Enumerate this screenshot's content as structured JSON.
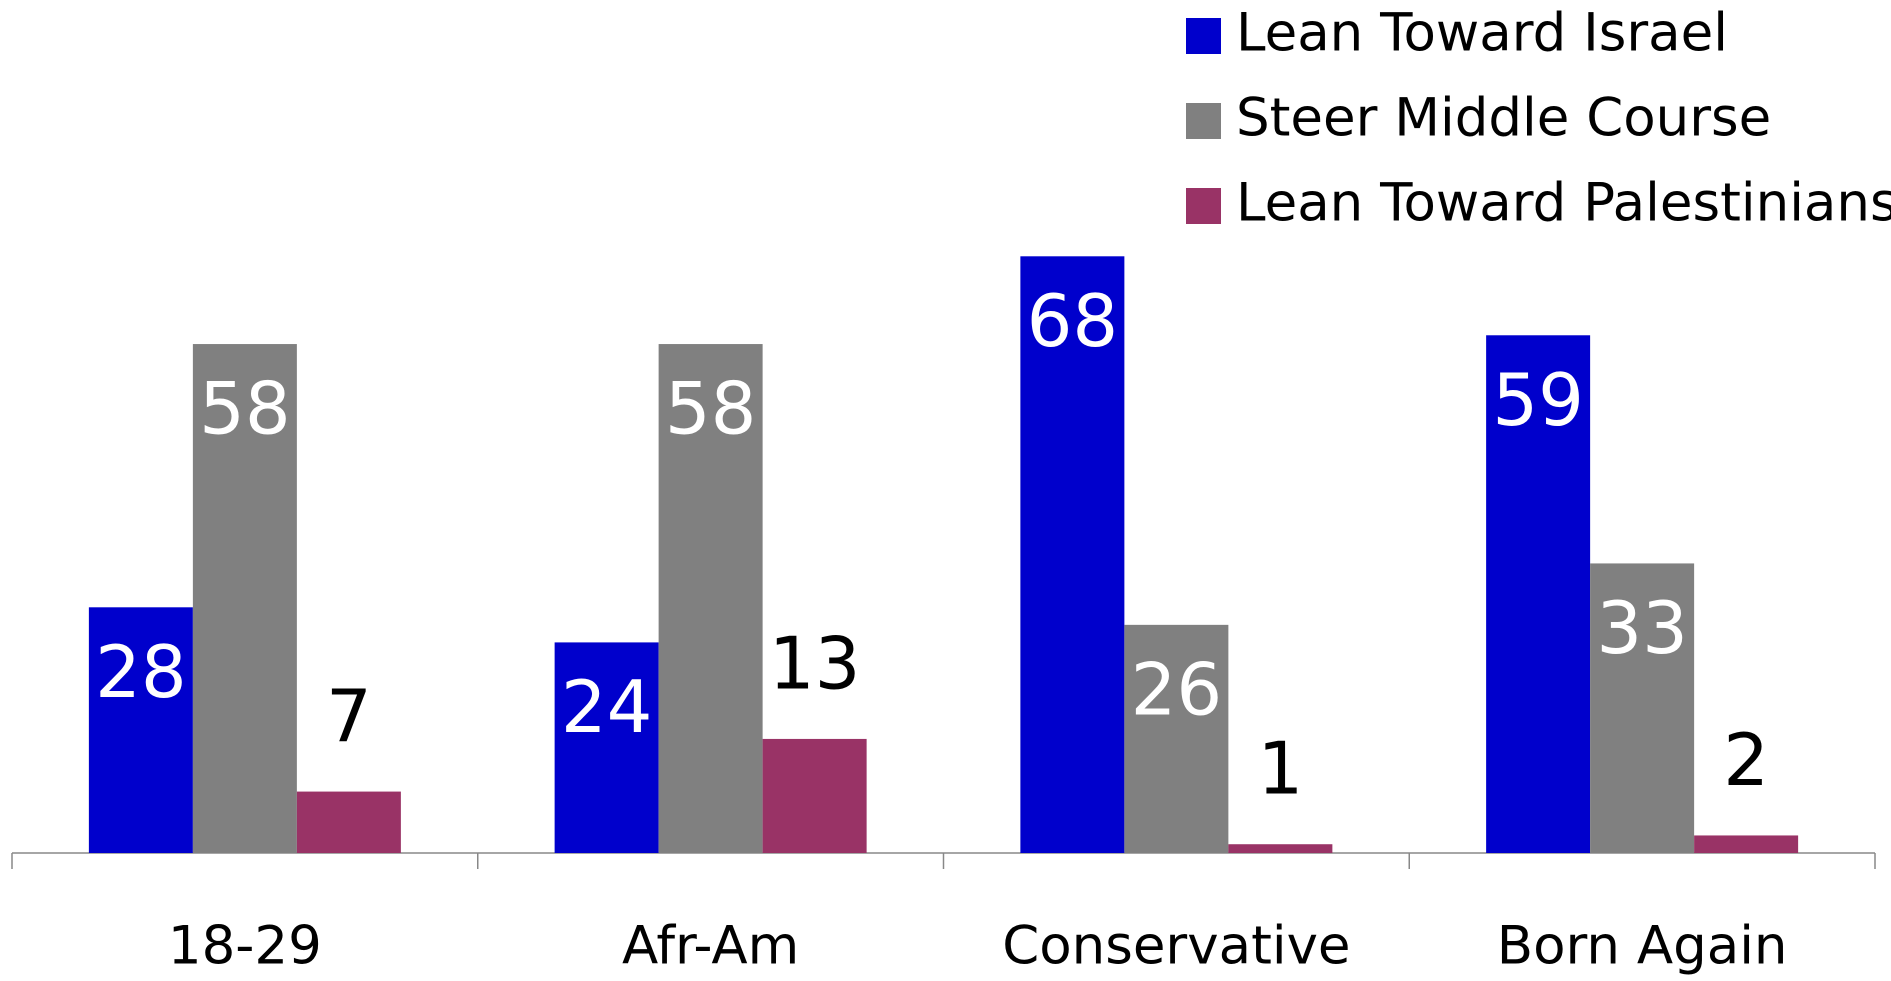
{
  "chart_data": {
    "type": "bar",
    "categories": [
      "18-29",
      "Afr-Am",
      "Conservative",
      "Born Again"
    ],
    "series": [
      {
        "name": "Lean Toward Israel",
        "color": "#0000cc",
        "values": [
          28,
          24,
          68,
          59
        ]
      },
      {
        "name": "Steer Middle Course",
        "color": "#808080",
        "values": [
          58,
          58,
          26,
          33
        ]
      },
      {
        "name": "Lean Toward Palestinians",
        "color": "#993366",
        "values": [
          7,
          13,
          1,
          2
        ]
      }
    ],
    "ylim": [
      0,
      80
    ],
    "legend": "top-right",
    "grid": false
  }
}
